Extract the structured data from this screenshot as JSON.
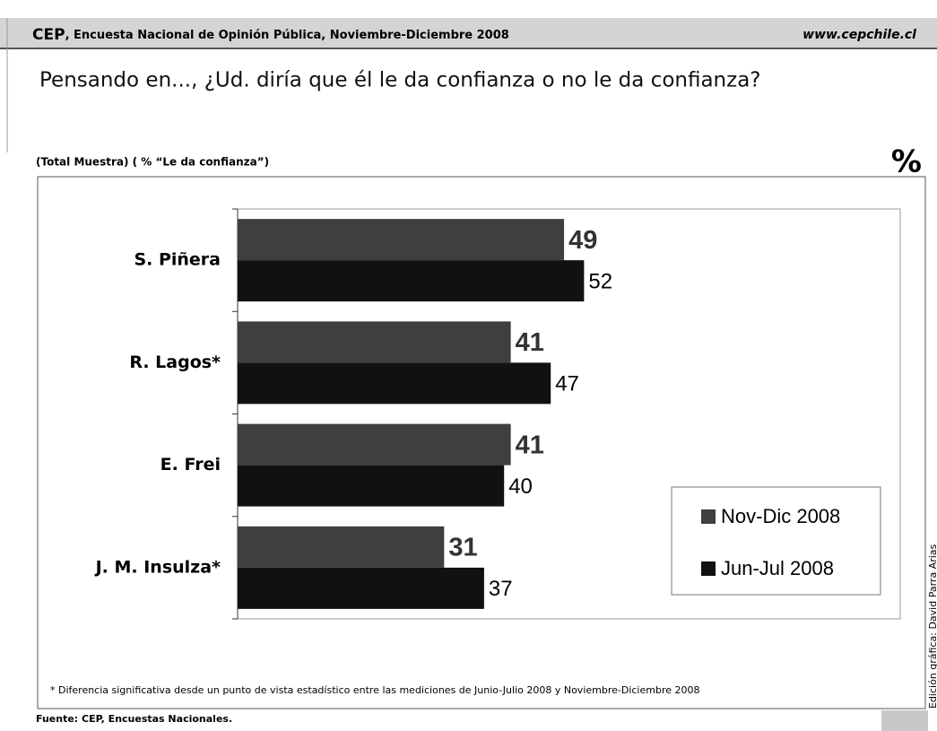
{
  "header": {
    "brand": "CEP",
    "title": ", Encuesta Nacional de Opinión Pública, Noviembre-Diciembre 2008",
    "url": "www.cepchile.cl"
  },
  "chart_data": {
    "type": "bar",
    "orientation": "horizontal",
    "title": "Pensando en..., ¿Ud. diría que él le da confianza o no le da confianza?",
    "subtitle": "(Total Muestra) ( % “Le da confianza”)",
    "unit": "%",
    "categories": [
      "S. Piñera",
      "R. Lagos*",
      "E. Frei",
      "J. M. Insulza*"
    ],
    "series": [
      {
        "name": "Nov-Dic 2008",
        "color": "#3f3f3f",
        "values": [
          49,
          41,
          41,
          31
        ]
      },
      {
        "name": "Jun-Jul 2008",
        "color": "#111111",
        "values": [
          52,
          47,
          40,
          37
        ]
      }
    ],
    "xlim": [
      0,
      100
    ],
    "legend": "lower right",
    "footnote": "* Diferencia significativa desde un punto de vista estadístico entre las mediciones de Junio-Julio 2008 y Noviembre-Diciembre 2008",
    "source": "Fuente: CEP, Encuestas Nacionales."
  },
  "credit": "Edición gráfica: David Parra Arias"
}
